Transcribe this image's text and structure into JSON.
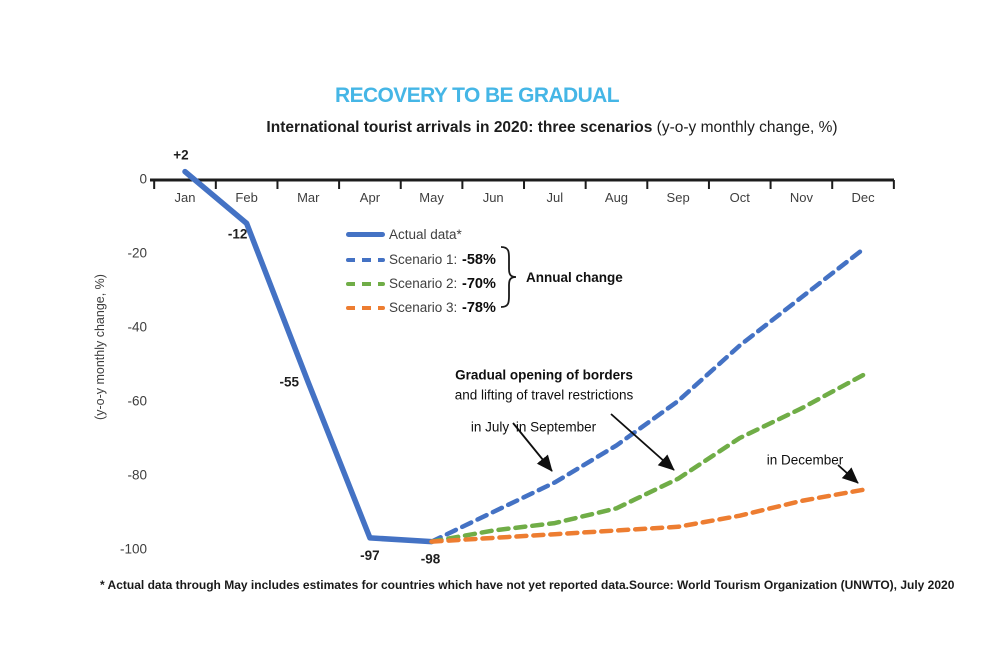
{
  "header": {
    "title": "RECOVERY TO BE GRADUAL",
    "subtitle_bold": "International tourist arrivals in 2020: three scenarios",
    "subtitle_regular": " (y-o-y monthly change, %)"
  },
  "legend": {
    "items": [
      {
        "label": "Actual data*",
        "pct": "",
        "color": "#4472C4",
        "style": "solid"
      },
      {
        "label": "Scenario 1:",
        "pct": "-58%",
        "color": "#4472C4",
        "style": "dashed"
      },
      {
        "label": "Scenario 2:",
        "pct": "-70%",
        "color": "#70AD47",
        "style": "dashed"
      },
      {
        "label": "Scenario 3:",
        "pct": "-78%",
        "color": "#ED7D31",
        "style": "dashed"
      }
    ],
    "bracket_label": "Annual change"
  },
  "annotations": {
    "gradual_line1": "Gradual opening of borders",
    "gradual_line2": "and lifting of travel restrictions",
    "in_july": "in July",
    "in_september": "in September",
    "in_december": "in December"
  },
  "footnote": {
    "note": "* Actual data through May includes estimates for countries which have not yet reported data.",
    "source": "Source: World Tourism Organization (UNWTO), July 2020"
  },
  "colors": {
    "title_blue": "#45B6E6",
    "actual_blue": "#4472C4",
    "scenario2_green": "#70AD47",
    "scenario3_orange": "#ED7D31",
    "axis_black": "#1c1c1c"
  },
  "chart_data": {
    "type": "line",
    "title": "International tourist arrivals in 2020: three scenarios (y-o-y monthly change, %)",
    "ylabel": "(y-o-y monthly change, %)",
    "x_categories": [
      "Jan",
      "Feb",
      "Mar",
      "Apr",
      "May",
      "Jun",
      "Jul",
      "Aug",
      "Sep",
      "Oct",
      "Nov",
      "Dec"
    ],
    "y_ticks": [
      0,
      -20,
      -40,
      -60,
      -80,
      -100
    ],
    "ylim": [
      -100,
      5
    ],
    "grid": false,
    "legend_position": "inside upper-left of plot area",
    "series": [
      {
        "name": "Actual data*",
        "color": "#4472C4",
        "dash": false,
        "start_index": 0,
        "values": [
          2,
          -12,
          -55,
          -97,
          -98
        ],
        "point_labels": [
          "+2",
          "-12",
          "-55",
          "-97",
          "-98"
        ]
      },
      {
        "name": "Scenario 1",
        "annual_change": "-58%",
        "color": "#4472C4",
        "dash": true,
        "start_index": 4,
        "values": [
          -98,
          -90,
          -82,
          -72,
          -60,
          -45,
          -32,
          -19
        ]
      },
      {
        "name": "Scenario 2",
        "annual_change": "-70%",
        "color": "#70AD47",
        "dash": true,
        "start_index": 4,
        "values": [
          -98,
          -95,
          -93,
          -89,
          -81,
          -70,
          -62,
          -53
        ]
      },
      {
        "name": "Scenario 3",
        "annual_change": "-78%",
        "color": "#ED7D31",
        "dash": true,
        "start_index": 4,
        "values": [
          -98,
          -97,
          -96,
          -95,
          -94,
          -91,
          -87,
          -84
        ]
      }
    ]
  }
}
